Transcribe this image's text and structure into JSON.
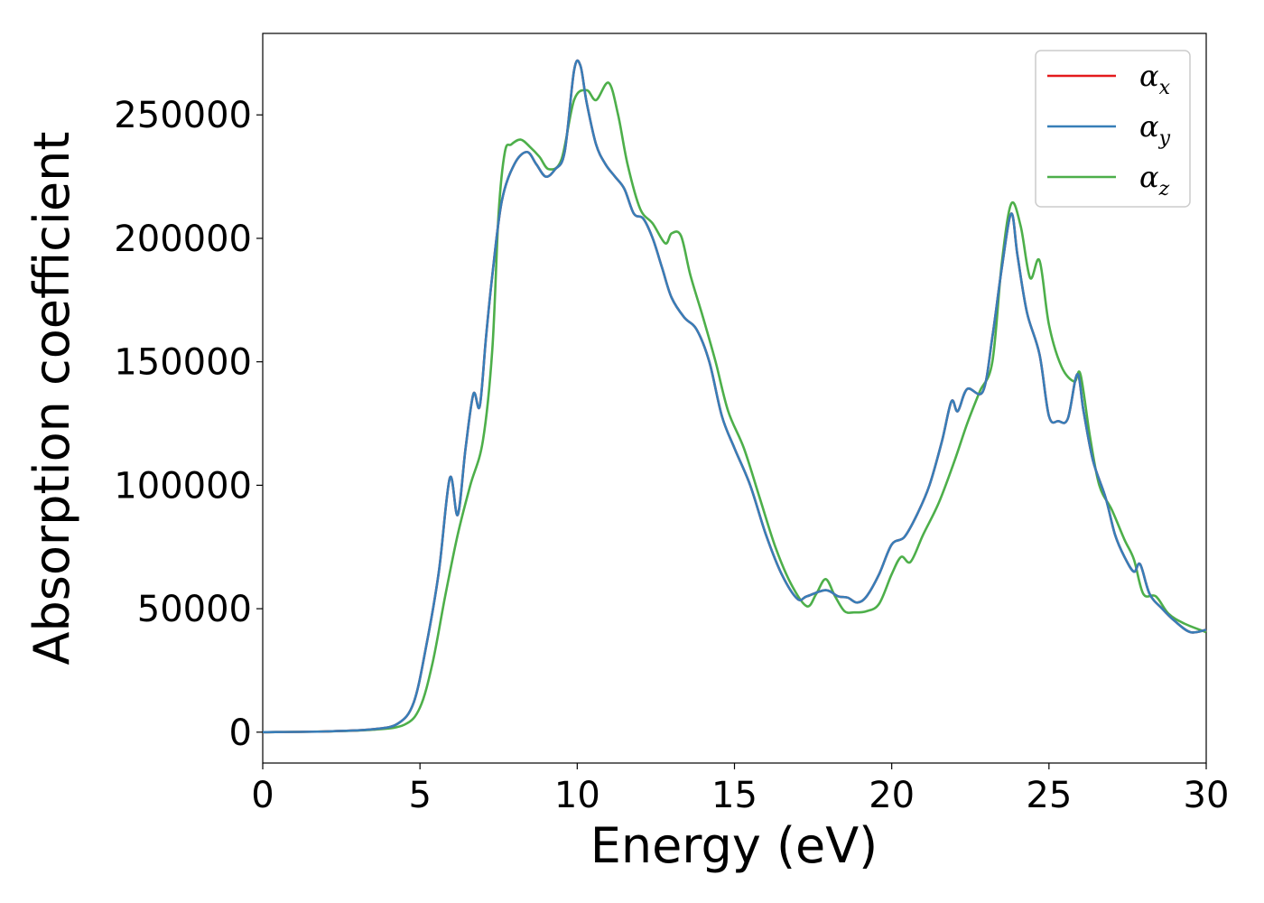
{
  "chart_data": {
    "type": "line",
    "xlabel": "Energy (eV)",
    "ylabel": "Absorption coefficient",
    "xlim": [
      0,
      30
    ],
    "ylim": [
      -12500,
      283000
    ],
    "xticks": [
      0,
      5,
      10,
      15,
      20,
      25,
      30
    ],
    "yticks": [
      0,
      50000,
      100000,
      150000,
      200000,
      250000
    ],
    "grid": false,
    "legend_position": "top-right",
    "legend": [
      {
        "symbol": "α",
        "sub": "x",
        "color": "#e41a1c"
      },
      {
        "symbol": "α",
        "sub": "y",
        "color": "#377eb8"
      },
      {
        "symbol": "α",
        "sub": "z",
        "color": "#4daf4a"
      }
    ],
    "series": [
      {
        "name": "αx",
        "color": "#e41a1c",
        "x": [
          0,
          2,
          3.5,
          4.3,
          4.8,
          5.2,
          5.6,
          5.95,
          6.2,
          6.45,
          6.7,
          6.9,
          7.1,
          7.3,
          7.6,
          8.0,
          8.4,
          8.7,
          9.0,
          9.3,
          9.6,
          9.9,
          10.1,
          10.3,
          10.6,
          10.9,
          11.2,
          11.5,
          11.8,
          12.1,
          12.4,
          12.7,
          13.0,
          13.4,
          13.8,
          14.2,
          14.6,
          15.0,
          15.5,
          16.0,
          16.5,
          17.0,
          17.3,
          17.9,
          18.3,
          18.6,
          18.9,
          19.2,
          19.6,
          20.0,
          20.4,
          20.8,
          21.2,
          21.6,
          21.9,
          22.1,
          22.4,
          22.9,
          23.2,
          23.5,
          23.8,
          24.0,
          24.3,
          24.7,
          25.0,
          25.3,
          25.6,
          25.9,
          26.1,
          26.4,
          26.8,
          27.1,
          27.4,
          27.7,
          27.9,
          28.2,
          28.6,
          29.0,
          29.5,
          30
        ],
        "values": [
          0,
          300,
          1200,
          3500,
          12000,
          35000,
          65000,
          103000,
          88000,
          115000,
          137000,
          132000,
          160000,
          185000,
          215000,
          230000,
          235000,
          230000,
          225000,
          228000,
          235000,
          268000,
          270000,
          255000,
          238000,
          230000,
          225000,
          220000,
          210000,
          208000,
          200000,
          188000,
          176000,
          168000,
          163000,
          150000,
          128000,
          115000,
          100000,
          80000,
          64000,
          54000,
          55000,
          57500,
          55000,
          54500,
          52500,
          55000,
          64000,
          76000,
          79000,
          88000,
          100000,
          118000,
          134000,
          130000,
          139000,
          138000,
          160000,
          188000,
          210000,
          193000,
          170000,
          153000,
          128000,
          126000,
          127000,
          145000,
          130000,
          110000,
          95000,
          80000,
          71000,
          65000,
          68000,
          56000,
          50000,
          45000,
          40500,
          41500
        ]
      },
      {
        "name": "αy",
        "color": "#377eb8",
        "x": [
          0,
          2,
          3.5,
          4.3,
          4.8,
          5.2,
          5.6,
          5.95,
          6.2,
          6.45,
          6.7,
          6.9,
          7.1,
          7.3,
          7.6,
          8.0,
          8.4,
          8.7,
          9.0,
          9.3,
          9.6,
          9.9,
          10.1,
          10.3,
          10.6,
          10.9,
          11.2,
          11.5,
          11.8,
          12.1,
          12.4,
          12.7,
          13.0,
          13.4,
          13.8,
          14.2,
          14.6,
          15.0,
          15.5,
          16.0,
          16.5,
          17.0,
          17.3,
          17.9,
          18.3,
          18.6,
          18.9,
          19.2,
          19.6,
          20.0,
          20.4,
          20.8,
          21.2,
          21.6,
          21.9,
          22.1,
          22.4,
          22.9,
          23.2,
          23.5,
          23.8,
          24.0,
          24.3,
          24.7,
          25.0,
          25.3,
          25.6,
          25.9,
          26.1,
          26.4,
          26.8,
          27.1,
          27.4,
          27.7,
          27.9,
          28.2,
          28.6,
          29.0,
          29.5,
          30
        ],
        "values": [
          0,
          300,
          1200,
          3500,
          12000,
          35000,
          65000,
          103000,
          88000,
          115000,
          137000,
          132000,
          160000,
          185000,
          215000,
          230000,
          235000,
          230000,
          225000,
          228000,
          235000,
          268000,
          270000,
          255000,
          238000,
          230000,
          225000,
          220000,
          210000,
          208000,
          200000,
          188000,
          176000,
          168000,
          163000,
          150000,
          128000,
          115000,
          100000,
          80000,
          64000,
          54000,
          55000,
          57500,
          55000,
          54500,
          52500,
          55000,
          64000,
          76000,
          79000,
          88000,
          100000,
          118000,
          134000,
          130000,
          139000,
          138000,
          160000,
          188000,
          210000,
          193000,
          170000,
          153000,
          128000,
          126000,
          127000,
          145000,
          130000,
          110000,
          95000,
          80000,
          71000,
          65000,
          68000,
          56000,
          50000,
          45000,
          40500,
          41500
        ]
      },
      {
        "name": "αz",
        "color": "#4daf4a",
        "x": [
          0,
          2,
          3.5,
          4.5,
          5.0,
          5.4,
          5.8,
          6.2,
          6.6,
          7.0,
          7.3,
          7.5,
          7.7,
          7.9,
          8.2,
          8.5,
          8.8,
          9.1,
          9.5,
          9.9,
          10.3,
          10.6,
          11.0,
          11.3,
          11.6,
          12.0,
          12.4,
          12.8,
          13.0,
          13.3,
          13.6,
          14.0,
          14.4,
          14.8,
          15.3,
          15.8,
          16.3,
          16.8,
          17.3,
          17.6,
          17.9,
          18.2,
          18.5,
          18.8,
          19.2,
          19.6,
          20.0,
          20.3,
          20.6,
          21.0,
          21.5,
          22.0,
          22.4,
          22.8,
          23.2,
          23.5,
          23.8,
          24.1,
          24.4,
          24.7,
          25.0,
          25.4,
          25.8,
          26.0,
          26.3,
          26.6,
          27.0,
          27.4,
          27.7,
          28.0,
          28.4,
          28.8,
          29.3,
          30
        ],
        "values": [
          0,
          300,
          1000,
          3000,
          10000,
          28000,
          55000,
          80000,
          100000,
          118000,
          155000,
          210000,
          235000,
          238000,
          240000,
          237000,
          233000,
          228000,
          232000,
          256000,
          260000,
          256000,
          263000,
          250000,
          230000,
          212000,
          206000,
          198000,
          202000,
          201000,
          185000,
          168000,
          150000,
          130000,
          115000,
          95000,
          75000,
          60000,
          51000,
          56000,
          62000,
          55000,
          49000,
          48500,
          49000,
          52000,
          64000,
          71000,
          69000,
          80000,
          93000,
          110000,
          125000,
          138000,
          150000,
          190000,
          214000,
          205000,
          184000,
          191000,
          165000,
          148000,
          142000,
          145000,
          120000,
          100000,
          90000,
          78000,
          70000,
          56000,
          55000,
          48000,
          44000,
          40500
        ]
      }
    ]
  }
}
